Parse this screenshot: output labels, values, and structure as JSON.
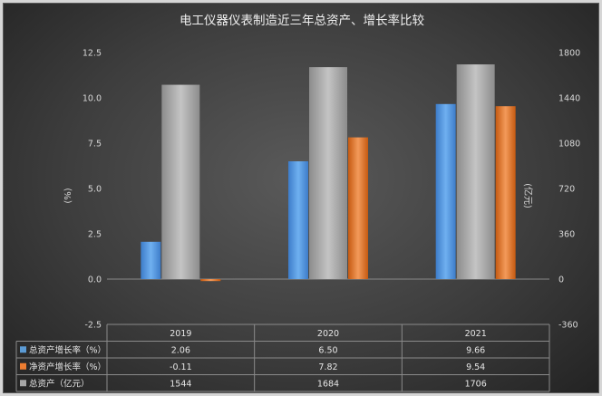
{
  "chart_data": {
    "type": "bar",
    "title": "电工仪器仪表制造近三年总资产、增长率比较",
    "categories": [
      "2019",
      "2020",
      "2021"
    ],
    "y_left": {
      "label": "(%)",
      "ylim": [
        -2.5,
        12.5
      ],
      "ticks": [
        "12.5",
        "10.0",
        "7.5",
        "5.0",
        "2.5",
        "0.0",
        "-2.5"
      ]
    },
    "y_right": {
      "label": "(亿元)",
      "ylim": [
        -360,
        1800
      ],
      "ticks": [
        "1800",
        "1440",
        "1080",
        "720",
        "360",
        "0",
        "-360"
      ]
    },
    "series": [
      {
        "name": "总资产增长率（%）",
        "axis": "left",
        "color": "#5b9bd5",
        "values": [
          2.06,
          6.5,
          9.66
        ],
        "display": [
          "2.06",
          "6.50",
          "9.66"
        ]
      },
      {
        "name": "净资产增长率（%）",
        "axis": "left",
        "color": "#ed7d31",
        "values": [
          -0.11,
          7.82,
          9.54
        ],
        "display": [
          "-0.11",
          "7.82",
          "9.54"
        ]
      },
      {
        "name": "总资产（亿元）",
        "axis": "right",
        "color": "#a5a5a5",
        "values": [
          1544,
          1684,
          1706
        ],
        "display": [
          "1544",
          "1684",
          "1706"
        ]
      }
    ],
    "grid": false,
    "legend": "data-table"
  }
}
